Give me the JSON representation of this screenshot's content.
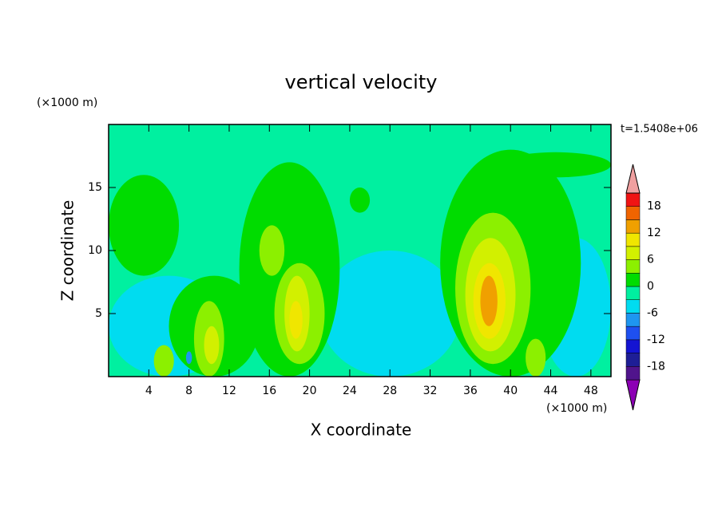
{
  "chart_data": {
    "type": "contour",
    "title": "vertical velocity",
    "x_label": "X coordinate",
    "y_label": "Z coordinate",
    "x_unit": "(×1000 m)",
    "y_unit": "(×1000 m)",
    "annotation": "t=1.5408e+06",
    "xlim": [
      0,
      50
    ],
    "ylim": [
      0,
      20
    ],
    "xticks": [
      4,
      8,
      12,
      16,
      20,
      24,
      28,
      32,
      36,
      40,
      44,
      48
    ],
    "yticks": [
      5,
      10,
      15
    ],
    "colorbar": {
      "levels": [
        -21,
        -18,
        -15,
        -12,
        -9,
        -6,
        -3,
        0,
        3,
        6,
        9,
        12,
        15,
        18,
        21
      ],
      "ticks": [
        -18,
        -12,
        -6,
        0,
        6,
        12,
        18
      ],
      "colors": [
        "#8c00b4",
        "#50148c",
        "#1e1e96",
        "#1414d2",
        "#1e50f0",
        "#1e96f0",
        "#00dcf0",
        "#00f0a0",
        "#00dc00",
        "#8cf000",
        "#d2f000",
        "#f0e600",
        "#f0a000",
        "#f06400",
        "#f01414",
        "#f0a0a0"
      ]
    },
    "background_value": -1,
    "regions": [
      {
        "x": [
          0,
          12
        ],
        "z": [
          0,
          8
        ],
        "value": -4
      },
      {
        "x": [
          21,
          35
        ],
        "z": [
          0,
          10
        ],
        "value": -4
      },
      {
        "x": [
          43,
          50
        ],
        "z": [
          0,
          11
        ],
        "value": -4
      },
      {
        "x": [
          0,
          7
        ],
        "z": [
          8,
          16
        ],
        "value": 1
      },
      {
        "x": [
          6,
          15
        ],
        "z": [
          0,
          8
        ],
        "value": 1
      },
      {
        "x": [
          13,
          23
        ],
        "z": [
          0,
          17
        ],
        "value": 1
      },
      {
        "x": [
          24,
          26
        ],
        "z": [
          13,
          15
        ],
        "value": 1
      },
      {
        "x": [
          33,
          47
        ],
        "z": [
          0,
          18
        ],
        "value": 1
      },
      {
        "x": [
          39,
          50
        ],
        "z": [
          15.8,
          17.8
        ],
        "value": 1
      },
      {
        "x": [
          15,
          17.5
        ],
        "z": [
          8,
          12
        ],
        "value": 4
      },
      {
        "x": [
          16.5,
          21.5
        ],
        "z": [
          1,
          9
        ],
        "value": 4
      },
      {
        "x": [
          8.5,
          11.5
        ],
        "z": [
          0,
          6
        ],
        "value": 4
      },
      {
        "x": [
          34.5,
          42
        ],
        "z": [
          1,
          13
        ],
        "value": 4
      },
      {
        "x": [
          4.5,
          6.5
        ],
        "z": [
          0,
          2.5
        ],
        "value": 4
      },
      {
        "x": [
          41.5,
          43.5
        ],
        "z": [
          0,
          3
        ],
        "value": 4
      },
      {
        "x": [
          17.5,
          20
        ],
        "z": [
          2,
          8
        ],
        "value": 7
      },
      {
        "x": [
          9.5,
          11
        ],
        "z": [
          1,
          4
        ],
        "value": 7
      },
      {
        "x": [
          35.5,
          40.5
        ],
        "z": [
          2,
          11
        ],
        "value": 7
      },
      {
        "x": [
          18,
          19.3
        ],
        "z": [
          3,
          6
        ],
        "value": 10
      },
      {
        "x": [
          36.3,
          39.5
        ],
        "z": [
          3,
          9
        ],
        "value": 10
      },
      {
        "x": [
          37,
          38.7
        ],
        "z": [
          4,
          8
        ],
        "value": 13
      },
      {
        "x": [
          7.7,
          8.3
        ],
        "z": [
          1,
          2
        ],
        "value": -7
      }
    ]
  }
}
